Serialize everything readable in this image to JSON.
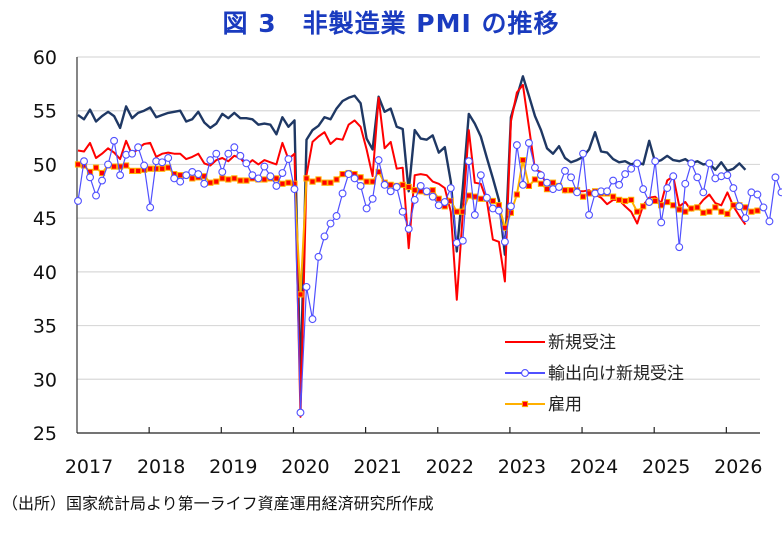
{
  "title": "図 3　非製造業 PMI の推移",
  "source": "（出所）国家統計局より第一ライフ資産運用経済研究所作成",
  "chart_data": {
    "type": "line",
    "title": "図 3　非製造業 PMI の推移",
    "xlabel": "",
    "ylabel": "",
    "ylim": [
      25,
      60
    ],
    "yticks": [
      "25",
      "30",
      "35",
      "40",
      "45",
      "50",
      "55",
      "60"
    ],
    "xticks": [
      "2017",
      "2018",
      "2019",
      "2020",
      "2021",
      "2022",
      "2023",
      "2024",
      "2025",
      "2026"
    ],
    "x_start": "2017-01",
    "frequency": "monthly",
    "grid": "horizontal",
    "legend_position": "bottom-right",
    "series": [
      {
        "name": "非製造業PMI",
        "in_legend": false,
        "color": "#1f3864",
        "marker": "none",
        "values": [
          54.6,
          54.2,
          55.1,
          54.0,
          54.5,
          54.9,
          54.5,
          53.4,
          55.4,
          54.3,
          54.8,
          55.0,
          55.3,
          54.4,
          54.6,
          54.8,
          54.9,
          55.0,
          54.0,
          54.2,
          54.9,
          53.9,
          53.4,
          53.8,
          54.7,
          54.3,
          54.8,
          54.3,
          54.3,
          54.2,
          53.7,
          53.8,
          53.7,
          52.8,
          54.4,
          53.5,
          54.1,
          29.6,
          52.3,
          53.2,
          53.6,
          54.4,
          54.2,
          55.2,
          55.9,
          56.2,
          56.4,
          55.7,
          52.4,
          51.4,
          56.3,
          54.9,
          55.2,
          53.5,
          53.3,
          47.5,
          53.2,
          52.4,
          52.3,
          52.7,
          51.1,
          51.6,
          48.4,
          41.9,
          47.8,
          54.7,
          53.8,
          52.6,
          50.6,
          48.7,
          46.7,
          41.6,
          54.4,
          56.3,
          58.2,
          56.4,
          54.5,
          53.2,
          51.5,
          51.0,
          51.7,
          50.6,
          50.2,
          50.4,
          50.7,
          51.4,
          53.0,
          51.2,
          51.1,
          50.5,
          50.2,
          50.3,
          50.0,
          50.2,
          50.0,
          52.2,
          50.2,
          50.4,
          50.8,
          50.4,
          50.3,
          50.5,
          50.1,
          50.3,
          50.0,
          50.1,
          49.5,
          50.2,
          49.4,
          49.6,
          50.1,
          49.5
        ]
      },
      {
        "name": "新規受注",
        "in_legend": true,
        "color": "#ff0000",
        "marker": "none",
        "values": [
          51.3,
          51.2,
          52.0,
          50.6,
          51.0,
          51.5,
          51.1,
          50.5,
          52.2,
          50.9,
          51.5,
          51.9,
          52.0,
          50.7,
          51.0,
          51.1,
          51.0,
          51.0,
          50.5,
          50.7,
          51.0,
          50.1,
          49.9,
          50.4,
          50.6,
          50.3,
          50.8,
          50.6,
          49.9,
          50.4,
          50.0,
          50.4,
          50.2,
          50.0,
          52.0,
          50.5,
          51.0,
          26.5,
          49.0,
          52.1,
          52.6,
          53.0,
          51.9,
          52.4,
          52.3,
          53.7,
          54.1,
          53.5,
          51.4,
          48.9,
          56.2,
          51.5,
          52.1,
          49.6,
          49.7,
          42.2,
          49.0,
          49.1,
          49.0,
          48.4,
          48.2,
          47.8,
          45.6,
          37.4,
          45.4,
          53.2,
          48.3,
          48.2,
          46.6,
          43.0,
          42.8,
          39.1,
          54.0,
          56.7,
          57.4,
          53.5,
          49.5,
          49.3,
          47.9,
          47.6,
          48.0,
          47.4,
          47.6,
          47.5,
          47.5,
          47.6,
          47.2,
          46.9,
          46.3,
          46.7,
          46.7,
          46.1,
          45.6,
          44.5,
          46.2,
          46.9,
          47.0,
          46.4,
          48.5,
          48.9,
          46.1,
          46.5,
          45.7,
          46.0,
          46.7,
          47.2,
          46.4,
          46.2,
          47.4,
          46.1,
          45.2,
          44.4
        ]
      },
      {
        "name": "輸出向け新規受注",
        "in_legend": true,
        "color": "#5050ff",
        "marker": "circle",
        "values": [
          46.6,
          50.3,
          48.8,
          47.1,
          48.5,
          50.0,
          52.2,
          49.0,
          50.9,
          51.0,
          51.6,
          49.9,
          46.0,
          50.3,
          50.2,
          50.6,
          48.7,
          48.4,
          49.0,
          49.3,
          49.1,
          48.2,
          50.4,
          51.0,
          49.3,
          51.0,
          51.6,
          50.8,
          50.1,
          49.0,
          48.7,
          49.8,
          48.9,
          48.0,
          49.2,
          50.5,
          47.7,
          26.9,
          38.6,
          35.6,
          41.4,
          43.3,
          44.5,
          45.2,
          47.3,
          49.1,
          48.7,
          48.0,
          45.9,
          46.8,
          50.4,
          48.1,
          47.5,
          47.9,
          45.6,
          44.0,
          46.7,
          48.0,
          47.5,
          47.0,
          46.2,
          46.5,
          47.8,
          42.7,
          42.9,
          50.3,
          45.3,
          49.0,
          46.9,
          45.9,
          45.7,
          42.8,
          46.1,
          51.8,
          48.1,
          52.0,
          49.7,
          49.0,
          48.3,
          47.7,
          47.9,
          49.4,
          48.8,
          47.4,
          51.0,
          45.3,
          47.3,
          47.5,
          47.5,
          48.5,
          48.1,
          49.1,
          49.6,
          50.1,
          47.7,
          46.5,
          50.3,
          44.6,
          47.8,
          48.9,
          42.3,
          48.2,
          50.1,
          48.8,
          47.4,
          50.1,
          48.7,
          48.9,
          49.0,
          47.8,
          46.1,
          45.0,
          47.4,
          47.2,
          46.0,
          44.7,
          48.8,
          47.4
        ]
      },
      {
        "name": "雇用",
        "in_legend": true,
        "color": "#ffb000",
        "marker": "square",
        "marker_color": "#ff0000",
        "values": [
          50.0,
          49.9,
          49.3,
          49.7,
          49.2,
          49.9,
          49.8,
          49.8,
          49.9,
          49.4,
          49.4,
          49.5,
          49.6,
          49.6,
          49.6,
          49.7,
          49.1,
          49.0,
          49.0,
          48.7,
          48.8,
          48.9,
          48.3,
          48.4,
          48.7,
          48.6,
          48.7,
          48.5,
          48.5,
          48.7,
          48.6,
          48.6,
          48.7,
          48.7,
          48.2,
          48.3,
          48.2,
          37.9,
          48.7,
          48.4,
          48.6,
          48.3,
          48.3,
          48.6,
          49.1,
          49.2,
          49.1,
          48.8,
          48.4,
          48.4,
          49.3,
          48.3,
          48.1,
          48.0,
          48.1,
          47.9,
          47.6,
          47.5,
          47.4,
          47.6,
          46.8,
          46.1,
          46.6,
          45.6,
          45.6,
          47.1,
          47.0,
          46.8,
          46.8,
          46.6,
          46.2,
          44.1,
          45.5,
          47.2,
          50.4,
          48.0,
          48.6,
          48.2,
          47.7,
          48.3,
          48.0,
          47.6,
          47.6,
          47.6,
          47.0,
          47.3,
          47.5,
          47.3,
          47.3,
          47.0,
          46.7,
          46.6,
          46.7,
          45.6,
          46.1,
          46.5,
          46.6,
          46.2,
          46.5,
          46.2,
          45.8,
          45.6,
          45.9,
          46.0,
          45.5,
          45.6,
          46.0,
          45.6,
          45.4,
          46.2,
          46.2,
          46.0,
          45.6,
          45.7
        ]
      }
    ]
  },
  "legend": {
    "items": [
      {
        "label": "新規受注",
        "color": "#ff0000",
        "marker": "none"
      },
      {
        "label": "輸出向け新規受注",
        "color": "#5050ff",
        "marker": "circle"
      },
      {
        "label": "雇用",
        "color": "#ffb000",
        "marker": "square"
      }
    ]
  }
}
